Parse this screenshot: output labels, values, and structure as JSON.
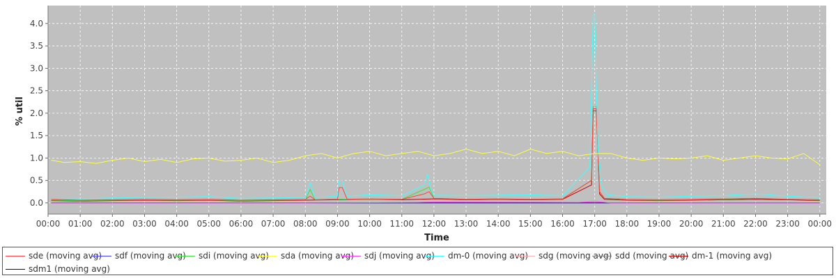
{
  "chart_data": {
    "type": "line",
    "xlabel": "Time",
    "ylabel": "% util",
    "xlim": [
      0.0,
      24.2
    ],
    "ylim": [
      -0.25,
      4.4
    ],
    "x_ticks": [
      "00:00",
      "01:00",
      "02:00",
      "03:00",
      "04:00",
      "05:00",
      "06:00",
      "07:00",
      "08:00",
      "09:00",
      "10:00",
      "11:00",
      "12:00",
      "13:00",
      "14:00",
      "15:00",
      "16:00",
      "17:00",
      "18:00",
      "19:00",
      "20:00",
      "21:00",
      "22:00",
      "23:00",
      "00:00"
    ],
    "y_ticks": [
      "0.0",
      "0.5",
      "1.0",
      "1.5",
      "2.0",
      "2.5",
      "3.0",
      "3.5",
      "4.0"
    ],
    "y_tick_values": [
      0,
      0.5,
      1.0,
      1.5,
      2.0,
      2.5,
      3.0,
      3.5,
      4.0
    ],
    "grid": true,
    "legend_position": "bottom",
    "plot_background": "#c0c0c0",
    "grid_color": "#ffffff",
    "series": [
      {
        "name": "sde (moving avg)",
        "color": "#ff4040",
        "x": [
          0.1,
          1,
          2,
          3,
          4,
          5,
          6,
          7,
          8,
          8.15,
          8.3,
          9,
          9.05,
          9.15,
          9.3,
          10,
          11,
          11.7,
          11.85,
          12,
          13,
          14,
          15,
          16,
          16.9,
          16.95,
          17.05,
          17.15,
          17.3,
          18,
          19,
          20,
          21,
          22,
          23,
          24
        ],
        "y": [
          0.08,
          0.06,
          0.07,
          0.08,
          0.07,
          0.08,
          0.06,
          0.07,
          0.08,
          0.15,
          0.07,
          0.08,
          0.34,
          0.34,
          0.08,
          0.09,
          0.08,
          0.2,
          0.25,
          0.1,
          0.08,
          0.09,
          0.08,
          0.09,
          0.5,
          2.1,
          2.1,
          0.25,
          0.1,
          0.08,
          0.07,
          0.08,
          0.09,
          0.1,
          0.08,
          0.07
        ]
      },
      {
        "name": "sdf (moving avg)",
        "color": "#4040ff",
        "x": [
          0.1,
          24
        ],
        "y": [
          0.0,
          0.0
        ]
      },
      {
        "name": "sdi (moving avg)",
        "color": "#40e040",
        "x": [
          0.1,
          1,
          2,
          3,
          4,
          5,
          6,
          7,
          8,
          8.15,
          8.3,
          9,
          10,
          11,
          11.7,
          11.85,
          12,
          13,
          14,
          15,
          16,
          16.9,
          16.95,
          17.05,
          17.15,
          17.3,
          18,
          19,
          20,
          21,
          22,
          23,
          24
        ],
        "y": [
          0.06,
          0.05,
          0.06,
          0.07,
          0.06,
          0.07,
          0.05,
          0.06,
          0.07,
          0.3,
          0.07,
          0.08,
          0.08,
          0.08,
          0.3,
          0.35,
          0.1,
          0.08,
          0.09,
          0.08,
          0.09,
          0.5,
          2.15,
          2.15,
          0.25,
          0.1,
          0.07,
          0.06,
          0.07,
          0.08,
          0.1,
          0.08,
          0.06
        ]
      },
      {
        "name": "sda (moving avg)",
        "color": "#ffff40",
        "x": [
          0.1,
          0.5,
          1,
          1.5,
          2,
          2.5,
          3,
          3.5,
          4,
          4.5,
          5,
          5.5,
          6,
          6.5,
          7,
          7.5,
          8,
          8.5,
          9,
          9.5,
          10,
          10.5,
          11,
          11.5,
          12,
          12.5,
          13,
          13.5,
          14,
          14.5,
          15,
          15.5,
          16,
          16.5,
          17,
          17.5,
          18,
          18.5,
          19,
          19.5,
          20,
          20.5,
          21,
          21.5,
          22,
          22.5,
          23,
          23.5,
          24
        ],
        "y": [
          0.95,
          0.9,
          0.92,
          0.88,
          0.95,
          1.0,
          0.92,
          0.97,
          0.9,
          0.98,
          1.0,
          0.93,
          0.95,
          1.0,
          0.9,
          0.95,
          1.05,
          1.1,
          1.0,
          1.1,
          1.15,
          1.05,
          1.1,
          1.15,
          1.05,
          1.1,
          1.2,
          1.1,
          1.15,
          1.05,
          1.2,
          1.1,
          1.15,
          1.05,
          1.1,
          1.1,
          1.0,
          0.95,
          1.0,
          0.98,
          1.0,
          1.05,
          0.95,
          1.0,
          1.05,
          1.0,
          0.98,
          1.1,
          0.85
        ]
      },
      {
        "name": "sdj (moving avg)",
        "color": "#ff40ff",
        "x": [
          0.1,
          8,
          11.5,
          12,
          16.5,
          17,
          17.5,
          24
        ],
        "y": [
          0.0,
          0.0,
          0.01,
          0.02,
          0.01,
          0.03,
          0.0,
          0.0
        ]
      },
      {
        "name": "dm-0 (moving avg)",
        "color": "#40ffff",
        "x": [
          0.1,
          1,
          2,
          3,
          4,
          5,
          6,
          7,
          8,
          8.15,
          8.3,
          9,
          9.05,
          9.15,
          9.3,
          10,
          11,
          11.7,
          11.8,
          11.9,
          12,
          13,
          14,
          15,
          16,
          16.85,
          16.95,
          17.0,
          17.1,
          17.2,
          17.4,
          18,
          19,
          20,
          21,
          22,
          23,
          24
        ],
        "y": [
          0.1,
          0.09,
          0.11,
          0.12,
          0.13,
          0.14,
          0.1,
          0.11,
          0.12,
          0.45,
          0.12,
          0.15,
          0.5,
          0.5,
          0.15,
          0.18,
          0.16,
          0.4,
          0.65,
          0.3,
          0.17,
          0.16,
          0.17,
          0.18,
          0.16,
          0.8,
          4.2,
          4.2,
          1.2,
          0.4,
          0.18,
          0.14,
          0.13,
          0.15,
          0.16,
          0.2,
          0.15,
          0.12
        ]
      },
      {
        "name": "sdg (moving avg)",
        "color": "#ffafaf",
        "x": [
          0.1,
          24
        ],
        "y": [
          0.0,
          0.0
        ]
      },
      {
        "name": "sdd (moving avg)",
        "color": "#808080",
        "x": [
          0.1,
          24
        ],
        "y": [
          0.0,
          0.0
        ]
      },
      {
        "name": "dm-1 (moving avg)",
        "color": "#c00000",
        "x": [
          0.1,
          1,
          2,
          3,
          4,
          5,
          6,
          7,
          8,
          9,
          10,
          11,
          12,
          13,
          14,
          15,
          16,
          16.9,
          16.95,
          17.05,
          17.15,
          17.3,
          18,
          19,
          20,
          21,
          22,
          23,
          24
        ],
        "y": [
          0.05,
          0.04,
          0.05,
          0.06,
          0.05,
          0.06,
          0.04,
          0.05,
          0.06,
          0.07,
          0.08,
          0.07,
          0.09,
          0.07,
          0.08,
          0.07,
          0.08,
          0.4,
          2.05,
          2.05,
          0.2,
          0.08,
          0.06,
          0.05,
          0.06,
          0.07,
          0.08,
          0.07,
          0.05
        ]
      },
      {
        "name": "sdm1 (moving avg)",
        "color": "#000080",
        "x": [
          0.1,
          24
        ],
        "y": [
          0.0,
          0.0
        ]
      }
    ]
  }
}
